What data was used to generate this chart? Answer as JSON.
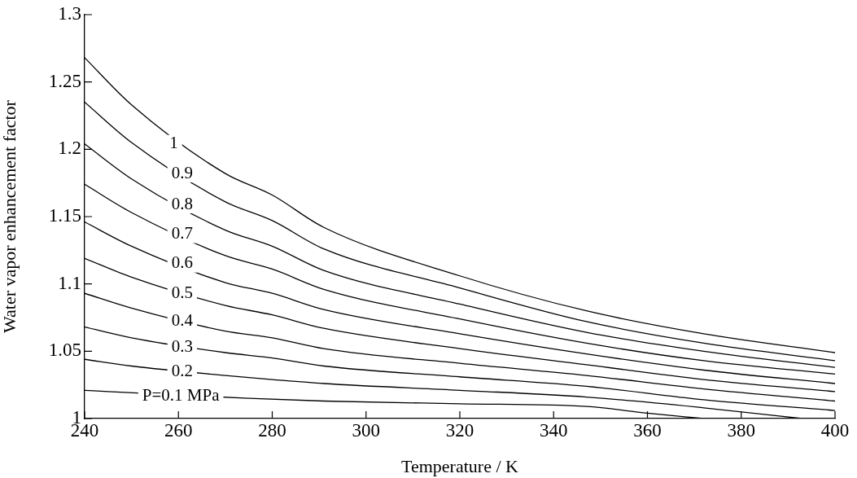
{
  "chart_data": {
    "type": "line",
    "xlabel": "Temperature / K",
    "ylabel": "Water vapor enhancement factor",
    "xlim": [
      240,
      400
    ],
    "xticks": [
      240,
      260,
      280,
      300,
      320,
      340,
      360,
      380,
      400
    ],
    "ylim": [
      1,
      1.3
    ],
    "yticks": [
      1,
      1.05,
      1.1,
      1.15,
      1.2,
      1.25,
      1.3
    ],
    "grid": false,
    "legend": false,
    "marker": "none",
    "line_style": "solid",
    "series": [
      {
        "color": "#000000",
        "x": [
          240,
          250,
          270,
          280,
          291,
          320,
          347,
          372,
          400
        ],
        "values": [
          1.268,
          1.233,
          1.182,
          1.166,
          1.142,
          1.106,
          1.08,
          1.063,
          1.049
        ]
      },
      {
        "color": "#000000",
        "x": [
          240,
          250,
          270,
          280,
          291,
          320,
          347,
          372,
          400
        ],
        "values": [
          1.235,
          1.205,
          1.161,
          1.147,
          1.126,
          1.097,
          1.072,
          1.056,
          1.043
        ]
      },
      {
        "color": "#000000",
        "x": [
          240,
          250,
          270,
          280,
          291,
          320,
          347,
          372,
          400
        ],
        "values": [
          1.204,
          1.178,
          1.14,
          1.128,
          1.11,
          1.085,
          1.064,
          1.05,
          1.038
        ]
      },
      {
        "color": "#000000",
        "x": [
          240,
          250,
          270,
          280,
          291,
          320,
          347,
          372,
          400
        ],
        "values": [
          1.174,
          1.153,
          1.121,
          1.111,
          1.096,
          1.074,
          1.056,
          1.043,
          1.033
        ]
      },
      {
        "color": "#000000",
        "x": [
          240,
          250,
          270,
          280,
          291,
          320,
          347,
          372,
          400
        ],
        "values": [
          1.146,
          1.128,
          1.101,
          1.093,
          1.081,
          1.063,
          1.048,
          1.036,
          1.026
        ]
      },
      {
        "color": "#000000",
        "x": [
          240,
          250,
          270,
          280,
          291,
          320,
          347,
          372,
          400
        ],
        "values": [
          1.119,
          1.105,
          1.084,
          1.077,
          1.067,
          1.052,
          1.04,
          1.029,
          1.02
        ]
      },
      {
        "color": "#000000",
        "x": [
          240,
          250,
          270,
          280,
          291,
          320,
          347,
          372,
          400
        ],
        "values": [
          1.093,
          1.082,
          1.065,
          1.06,
          1.052,
          1.041,
          1.032,
          1.022,
          1.013
        ]
      },
      {
        "color": "#000000",
        "x": [
          240,
          250,
          270,
          280,
          291,
          320,
          347,
          372,
          400
        ],
        "values": [
          1.068,
          1.06,
          1.049,
          1.045,
          1.039,
          1.031,
          1.024,
          1.014,
          1.006
        ]
      },
      {
        "color": "#000000",
        "x": [
          240,
          250,
          270,
          280,
          291,
          320,
          347,
          372,
          393
        ],
        "values": [
          1.044,
          1.039,
          1.032,
          1.029,
          1.026,
          1.021,
          1.016,
          1.008,
          1.0
        ]
      },
      {
        "color": "#000000",
        "x": [
          240,
          245,
          275,
          291,
          320,
          347,
          360,
          372
        ],
        "values": [
          1.021,
          1.02,
          1.015,
          1.013,
          1.011,
          1.009,
          1.004,
          1.0
        ]
      }
    ],
    "annotations": [
      {
        "text": "1",
        "x": 259,
        "y": 1.204
      },
      {
        "text": "0.9",
        "x": 260.8,
        "y": 1.182
      },
      {
        "text": "0.8",
        "x": 260.8,
        "y": 1.159
      },
      {
        "text": "0.7",
        "x": 260.8,
        "y": 1.137
      },
      {
        "text": "0.6",
        "x": 260.8,
        "y": 1.115
      },
      {
        "text": "0.5",
        "x": 260.8,
        "y": 1.093
      },
      {
        "text": "0.4",
        "x": 260.8,
        "y": 1.072
      },
      {
        "text": "0.3",
        "x": 260.8,
        "y": 1.053
      },
      {
        "text": "0.2",
        "x": 260.8,
        "y": 1.035
      },
      {
        "text": "P=0.1 MPa",
        "x": 260.5,
        "y": 1.0167
      }
    ]
  }
}
